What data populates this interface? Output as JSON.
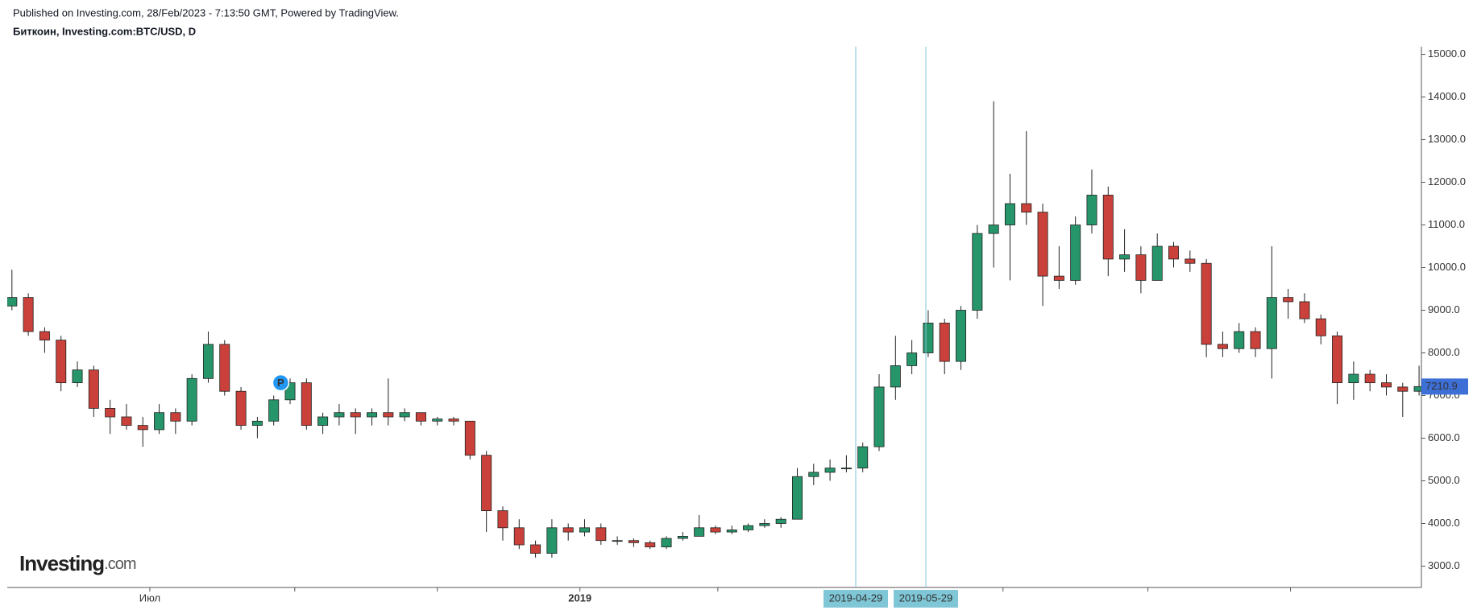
{
  "chart_data": {
    "type": "candlestick",
    "title": "Published on Investing.com, 28/Feb/2023 - 7:13:50 GMT, Powered by TradingView.",
    "subtitle": "Биткоин, Investing.com:BTC/USD, D",
    "logo": [
      "Investing",
      ".com"
    ],
    "x": [
      "2018-04-30",
      "2018-05-07",
      "2018-05-14",
      "2018-05-21",
      "2018-05-28",
      "2018-06-04",
      "2018-06-11",
      "2018-06-18",
      "2018-06-25",
      "2018-07-02",
      "2018-07-09",
      "2018-07-16",
      "2018-07-23",
      "2018-07-30",
      "2018-08-06",
      "2018-08-13",
      "2018-08-20",
      "2018-08-27",
      "2018-09-03",
      "2018-09-10",
      "2018-09-17",
      "2018-09-24",
      "2018-10-01",
      "2018-10-08",
      "2018-10-15",
      "2018-10-22",
      "2018-10-29",
      "2018-11-05",
      "2018-11-12",
      "2018-11-19",
      "2018-11-26",
      "2018-12-03",
      "2018-12-10",
      "2018-12-17",
      "2018-12-24",
      "2018-12-31",
      "2019-01-07",
      "2019-01-14",
      "2019-01-21",
      "2019-01-28",
      "2019-02-04",
      "2019-02-11",
      "2019-02-18",
      "2019-02-25",
      "2019-03-04",
      "2019-03-11",
      "2019-03-18",
      "2019-03-25",
      "2019-04-01",
      "2019-04-08",
      "2019-04-15",
      "2019-04-22",
      "2019-04-29",
      "2019-05-06",
      "2019-05-13",
      "2019-05-20",
      "2019-05-27",
      "2019-06-03",
      "2019-06-10",
      "2019-06-17",
      "2019-06-24",
      "2019-07-01",
      "2019-07-08",
      "2019-07-15",
      "2019-07-22",
      "2019-07-29",
      "2019-08-05",
      "2019-08-12",
      "2019-08-19",
      "2019-08-26",
      "2019-09-02",
      "2019-09-09",
      "2019-09-16",
      "2019-09-23",
      "2019-09-30",
      "2019-10-07",
      "2019-10-14",
      "2019-10-21",
      "2019-10-28",
      "2019-11-04",
      "2019-11-11",
      "2019-11-18",
      "2019-11-25",
      "2019-12-02",
      "2019-12-09",
      "2019-12-16",
      "2019-12-23"
    ],
    "open": [
      9100,
      9300,
      8500,
      8300,
      7300,
      7600,
      6700,
      6500,
      6300,
      6200,
      6600,
      6400,
      7400,
      8200,
      7100,
      6300,
      6400,
      6900,
      7300,
      6300,
      6500,
      6600,
      6500,
      6600,
      6500,
      6600,
      6400,
      6450,
      6400,
      5600,
      4300,
      3900,
      3500,
      3300,
      3900,
      3800,
      3900,
      3600,
      3600,
      3550,
      3450,
      3650,
      3700,
      3900,
      3800,
      3850,
      3950,
      4000,
      4100,
      5100,
      5200,
      5300,
      5300,
      5800,
      7200,
      7700,
      8000,
      8700,
      7800,
      9000,
      10800,
      11000,
      11500,
      11300,
      9800,
      9700,
      11000,
      11700,
      10200,
      10300,
      9700,
      10500,
      10200,
      10100,
      8200,
      8100,
      8500,
      8100,
      9300,
      9200,
      8800,
      8400,
      7300,
      7500,
      7300,
      7200,
      7100
    ],
    "high": [
      9950,
      9400,
      8600,
      8400,
      7800,
      7700,
      6900,
      6800,
      6500,
      6800,
      6700,
      7500,
      8500,
      8300,
      7200,
      6500,
      7000,
      7400,
      7400,
      6600,
      6800,
      6700,
      6700,
      7400,
      6700,
      6600,
      6500,
      6500,
      6400,
      5700,
      4400,
      4100,
      3600,
      4100,
      4000,
      4100,
      4000,
      3700,
      3650,
      3600,
      3700,
      3800,
      4200,
      3950,
      3950,
      4000,
      4100,
      4150,
      5300,
      5400,
      5500,
      5600,
      5900,
      7500,
      8400,
      8300,
      9000,
      8800,
      9100,
      11000,
      13900,
      12200,
      13200,
      11500,
      10500,
      11200,
      12300,
      11900,
      10900,
      10500,
      10800,
      10600,
      10400,
      10200,
      8500,
      8700,
      8600,
      10500,
      9500,
      9400,
      8900,
      8500,
      7800,
      7600,
      7500,
      7300,
      7700
    ],
    "low": [
      9000,
      8400,
      8000,
      7100,
      7200,
      6500,
      6100,
      6200,
      5800,
      6100,
      6100,
      6300,
      7300,
      7000,
      6200,
      6000,
      6300,
      6800,
      6200,
      6100,
      6300,
      6100,
      6300,
      6300,
      6400,
      6300,
      6300,
      6300,
      5500,
      3800,
      3600,
      3400,
      3200,
      3200,
      3600,
      3700,
      3500,
      3500,
      3450,
      3400,
      3400,
      3600,
      3700,
      3750,
      3750,
      3800,
      3900,
      3900,
      4100,
      4900,
      5000,
      5200,
      5200,
      5700,
      6900,
      7500,
      7900,
      7500,
      7600,
      8800,
      10000,
      9700,
      11000,
      9100,
      9500,
      9600,
      10800,
      9800,
      9900,
      9400,
      9700,
      10000,
      9900,
      7900,
      7900,
      8000,
      7900,
      7400,
      8800,
      8700,
      8200,
      6800,
      6900,
      7100,
      7000,
      6500,
      7000
    ],
    "close": [
      9300,
      8500,
      8300,
      7300,
      7600,
      6700,
      6500,
      6300,
      6200,
      6600,
      6400,
      7400,
      8200,
      7100,
      6300,
      6400,
      6900,
      7300,
      6300,
      6500,
      6600,
      6500,
      6600,
      6500,
      6600,
      6400,
      6450,
      6400,
      5600,
      4300,
      3900,
      3500,
      3300,
      3900,
      3800,
      3900,
      3600,
      3600,
      3550,
      3450,
      3650,
      3700,
      3900,
      3800,
      3850,
      3950,
      4000,
      4100,
      5100,
      5200,
      5300,
      5300,
      5800,
      7200,
      7700,
      8000,
      8700,
      7800,
      9000,
      10800,
      11000,
      11500,
      11300,
      9800,
      9700,
      11000,
      11700,
      10200,
      10300,
      9700,
      10500,
      10200,
      10100,
      8200,
      8100,
      8500,
      8100,
      9300,
      9200,
      8800,
      8400,
      7300,
      7500,
      7300,
      7200,
      7100,
      7210.9
    ],
    "up_color": "#26956a",
    "down_color": "#c9413a",
    "last_price": {
      "value": 7210.9,
      "label": "7210.9"
    },
    "last_price_color": "#3d6fd6",
    "markers": [
      {
        "x": "2019-04-29",
        "label": "2019-04-29"
      },
      {
        "x": "2019-05-29",
        "label": "2019-05-29"
      }
    ],
    "marker_color": "#7fc6d6",
    "annotations": [
      {
        "x": "2018-08-26",
        "y": 7300,
        "label": "P"
      }
    ],
    "xlim": [
      "2018-05-01",
      "2019-12-27"
    ],
    "xticks": [
      {
        "value": "2018-07-01",
        "label": "Июл"
      },
      {
        "value": "2018-09-01"
      },
      {
        "value": "2018-11-01"
      },
      {
        "value": "2019-01-01",
        "label": "2019"
      },
      {
        "value": "2019-03-01"
      },
      {
        "value": "2019-07-01"
      },
      {
        "value": "2019-09-01"
      },
      {
        "value": "2019-11-01"
      }
    ],
    "ylim": [
      2500,
      15180
    ],
    "yticks": [
      {
        "value": 3000,
        "label": "3000.0"
      },
      {
        "value": 4000,
        "label": "4000.0"
      },
      {
        "value": 5000,
        "label": "5000.0"
      },
      {
        "value": 6000,
        "label": "6000.0"
      },
      {
        "value": 7000,
        "label": "7000.0"
      },
      {
        "value": 8000,
        "label": "8000.0"
      },
      {
        "value": 9000,
        "label": "9000.0"
      },
      {
        "value": 10000,
        "label": "10000.0"
      },
      {
        "value": 11000,
        "label": "11000.0"
      },
      {
        "value": 12000,
        "label": "12000.0"
      },
      {
        "value": 13000,
        "label": "13000.0"
      },
      {
        "value": 14000,
        "label": "14000.0"
      },
      {
        "value": 15000,
        "label": "15000.0"
      }
    ]
  }
}
